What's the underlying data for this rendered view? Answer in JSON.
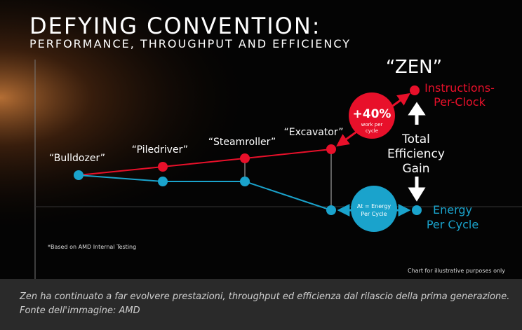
{
  "header": {
    "title": "DEFYING CONVENTION:",
    "subtitle": "PERFORMANCE, THROUGHPUT AND EFFICIENCY"
  },
  "nodes": [
    {
      "label": "“Bulldozer”"
    },
    {
      "label": "“Piledriver”"
    },
    {
      "label": "“Steamroller”"
    },
    {
      "label": "“Excavator”"
    },
    {
      "label": "“ZEN”"
    }
  ],
  "callouts": {
    "ipc_gain": {
      "value": "+40%",
      "lines": [
        "work per",
        "cycle"
      ]
    },
    "energy": {
      "lines": [
        "At = Energy",
        "Per Cycle"
      ]
    },
    "ipc_label": [
      "Instructions-",
      "Per-Clock"
    ],
    "efficiency_label": [
      "Total",
      "Efficiency",
      "Gain"
    ],
    "energy_label": [
      "Energy",
      "Per Cycle"
    ]
  },
  "footnote": "*Based on AMD Internal Testing",
  "disclaimer": "Chart for illustrative purposes only",
  "caption": {
    "lines": [
      "Zen ha continuato a far evolvere prestazioni, throughput ed efficienza dal rilascio della prima generazione.",
      "Fonte dell'immagine: AMD"
    ]
  }
}
